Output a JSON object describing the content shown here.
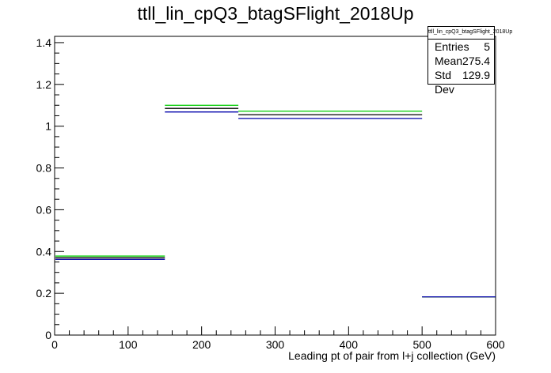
{
  "title": "ttll_lin_cpQ3_btagSFlight_2018Up",
  "statbox": {
    "title": "ttll_lin_cpQ3_btagSFlight_2018Up",
    "rows": [
      {
        "label": "Entries",
        "value": "5"
      },
      {
        "label": "Mean",
        "value": "275.4"
      },
      {
        "label": "Std Dev",
        "value": "129.9"
      }
    ]
  },
  "chart_data": {
    "type": "histogram",
    "title": "ttll_lin_cpQ3_btagSFlight_2018Up",
    "xlabel": "Leading pt of pair from l+j collection (GeV)",
    "ylabel": "",
    "xlim": [
      0,
      600
    ],
    "ylim": [
      0,
      1.43
    ],
    "x_ticks": [
      0,
      100,
      200,
      300,
      400,
      500,
      600
    ],
    "y_ticks": [
      0,
      0.2,
      0.4,
      0.6,
      0.8,
      1,
      1.2,
      1.4
    ],
    "bin_edges": [
      0,
      150,
      250,
      500,
      600
    ],
    "series": [
      {
        "color": "#00cc00",
        "values": [
          0.378,
          1.1,
          1.072,
          0.183
        ]
      },
      {
        "color": "#000000",
        "values": [
          0.37,
          1.085,
          1.055,
          0.183
        ]
      },
      {
        "color": "#0000aa",
        "values": [
          0.362,
          1.068,
          1.037,
          0.183
        ]
      }
    ],
    "grid": false
  }
}
